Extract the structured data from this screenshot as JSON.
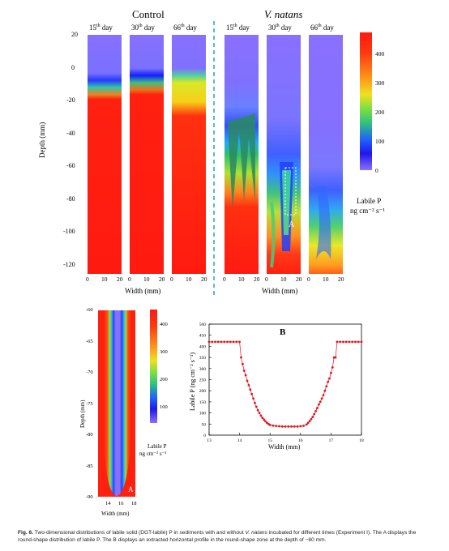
{
  "figure": {
    "groups": {
      "control": "Control",
      "vnatans": "V. natans"
    },
    "days": [
      {
        "num": "15",
        "sup": "th",
        "word": "day"
      },
      {
        "num": "30",
        "sup": "th",
        "word": "day"
      },
      {
        "num": "66",
        "sup": "th",
        "word": "day"
      }
    ],
    "ylabel_main": "Depth (mm)",
    "xlabel_main": "Width (mm)",
    "yticks_main": [
      "20",
      "0",
      "-20",
      "-40",
      "-60",
      "-80",
      "-100",
      "-120"
    ],
    "xticks_main": [
      "0",
      "10",
      "20"
    ],
    "colorbar_main": {
      "ticks": [
        "400",
        "300",
        "200",
        "100",
        "0"
      ],
      "label1": "Labile P",
      "label2": "ng cm⁻² s⁻¹"
    },
    "marker_A": "A",
    "panel_a": {
      "ylabel": "Depth (mm)",
      "xlabel": "Width (mm)",
      "yticks": [
        "-60",
        "-65",
        "-70",
        "-75",
        "-80",
        "-85",
        "-90"
      ],
      "xticks": [
        "14",
        "16",
        "18"
      ],
      "colorbar_ticks": [
        "400",
        "300",
        "200",
        "100"
      ],
      "colorbar_label1": "Labile P",
      "colorbar_label2": "ng cm⁻² s⁻¹",
      "letter": "A"
    },
    "panel_b": {
      "letter": "B",
      "ylabel": "Labile P (ng cm⁻² s⁻¹)",
      "xlabel": "Width (mm)"
    }
  },
  "chart_data": {
    "type": "scatter",
    "xlabel": "Width (mm)",
    "ylabel": "Labile P (ng cm-2 s-1)",
    "xlim": [
      13,
      18
    ],
    "ylim": [
      0,
      500
    ],
    "xticks": [
      13,
      14,
      15,
      16,
      17,
      18
    ],
    "yticks": [
      0,
      50,
      100,
      150,
      200,
      250,
      300,
      350,
      400,
      450,
      500
    ],
    "series": [
      {
        "color": "#e0141c",
        "x": [
          13.0,
          13.1,
          13.2,
          13.3,
          13.4,
          13.5,
          13.6,
          13.7,
          13.8,
          13.9,
          14.0,
          14.05,
          14.1,
          14.15,
          14.2,
          14.25,
          14.3,
          14.35,
          14.4,
          14.45,
          14.5,
          14.55,
          14.6,
          14.65,
          14.7,
          14.75,
          14.8,
          14.85,
          14.9,
          14.95,
          15.0,
          15.1,
          15.2,
          15.3,
          15.4,
          15.5,
          15.6,
          15.7,
          15.8,
          15.9,
          16.0,
          16.1,
          16.2,
          16.25,
          16.3,
          16.35,
          16.4,
          16.45,
          16.5,
          16.55,
          16.6,
          16.65,
          16.7,
          16.75,
          16.8,
          16.85,
          16.9,
          16.95,
          17.0,
          17.05,
          17.1,
          17.15,
          17.2,
          17.3,
          17.4,
          17.5,
          17.6,
          17.7,
          17.8,
          17.9,
          18.0
        ],
        "y": [
          420,
          420,
          420,
          420,
          420,
          420,
          420,
          420,
          420,
          420,
          420,
          350,
          320,
          290,
          270,
          245,
          225,
          205,
          185,
          165,
          145,
          128,
          112,
          100,
          88,
          78,
          70,
          62,
          55,
          50,
          46,
          43,
          41,
          40,
          39,
          39,
          39,
          39,
          39,
          39,
          40,
          42,
          48,
          55,
          63,
          72,
          82,
          95,
          108,
          122,
          138,
          150,
          165,
          180,
          200,
          220,
          240,
          255,
          280,
          305,
          350,
          350,
          420,
          420,
          420,
          420,
          420,
          420,
          420,
          420,
          420
        ]
      }
    ]
  }
}
